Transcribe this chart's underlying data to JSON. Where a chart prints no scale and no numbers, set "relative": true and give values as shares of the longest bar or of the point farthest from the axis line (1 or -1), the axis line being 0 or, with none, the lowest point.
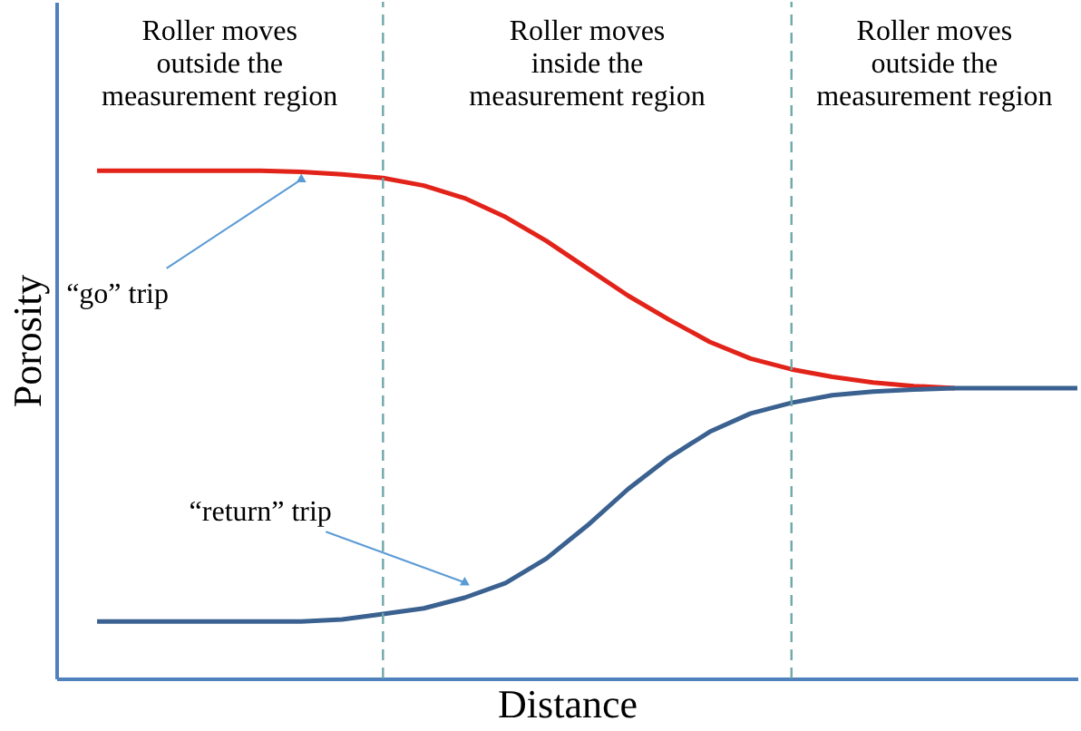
{
  "chart_data": {
    "type": "line",
    "relative": true,
    "xlabel": "Distance",
    "ylabel": "Porosity",
    "marker": "none",
    "line_style": "solid",
    "categories": [
      null,
      null,
      null,
      null,
      null,
      null,
      null,
      null,
      null,
      null,
      null,
      null,
      null,
      null,
      null,
      null,
      null,
      null,
      null,
      null,
      null,
      null,
      null,
      null,
      null
    ],
    "series": [
      {
        "color": "#e2231a",
        "values": [
          1.0,
          1.0,
          1.0,
          1.0,
          1.0,
          0.998,
          0.993,
          0.986,
          0.971,
          0.946,
          0.909,
          0.862,
          0.808,
          0.754,
          0.707,
          0.663,
          0.63,
          0.609,
          0.594,
          0.583,
          0.576,
          0.572,
          null,
          null,
          null
        ]
      },
      {
        "color": "#3a6190",
        "values": [
          0.112,
          0.112,
          0.112,
          0.112,
          0.112,
          0.112,
          0.116,
          0.127,
          0.138,
          0.159,
          0.188,
          0.236,
          0.301,
          0.373,
          0.435,
          0.486,
          0.522,
          0.543,
          0.558,
          0.565,
          0.569,
          0.572,
          0.572,
          0.572,
          0.572
        ]
      }
    ],
    "annotations": [
      "Roller moves\noutside the\nmeasurement region",
      "Roller moves\ninside the\nmeasurement region",
      "Roller moves\noutside the\nmeasurement region",
      "“go” trip",
      "“return” trip"
    ]
  }
}
